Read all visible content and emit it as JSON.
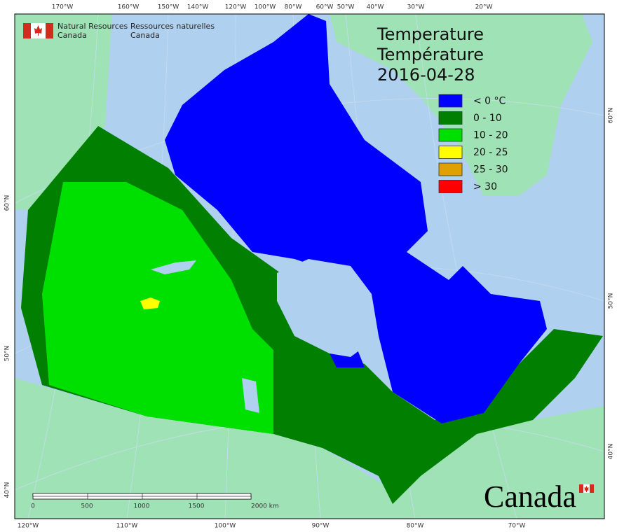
{
  "agency": {
    "en_line1": "Natural Resources",
    "en_line2": "Canada",
    "fr_line1": "Ressources naturelles",
    "fr_line2": "Canada"
  },
  "title": {
    "en": "Temperature",
    "fr": "Température",
    "date": "2016-04-28"
  },
  "legend": {
    "items": [
      {
        "label": "< 0 °C",
        "color": "#0000ff"
      },
      {
        "label": "0 - 10",
        "color": "#007f00"
      },
      {
        "label": "10 - 20",
        "color": "#00e000"
      },
      {
        "label": "20 - 25",
        "color": "#ffff00"
      },
      {
        "label": "25 - 30",
        "color": "#e0a000"
      },
      {
        "label": "> 30",
        "color": "#ff0000"
      }
    ]
  },
  "graticule": {
    "top_labels": [
      "170°W",
      "160°W",
      "150°W",
      "140°W",
      "120°W",
      "100°W",
      "80°W",
      "60°W",
      "50°W",
      "40°W",
      "30°W",
      "20°W"
    ],
    "bottom_labels": [
      "120°W",
      "110°W",
      "100°W",
      "90°W",
      "80°W",
      "70°W"
    ],
    "left_labels": [
      "60°N",
      "50°N",
      "40°N"
    ],
    "right_labels": [
      "60°N",
      "50°N",
      "40°N"
    ]
  },
  "scale_bar": {
    "labels": [
      "0",
      "500",
      "1000",
      "1500",
      "2000 km"
    ]
  },
  "wordmark": "Canada"
}
